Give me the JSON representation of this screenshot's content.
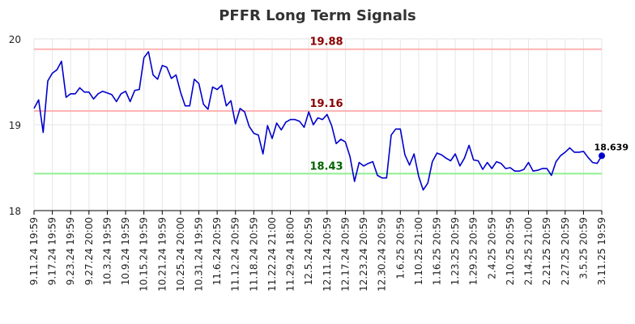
{
  "chart_data": {
    "type": "line",
    "title": "PFFR Long Term Signals",
    "xlabel": "",
    "ylabel": "",
    "ylim": [
      18,
      20
    ],
    "yticks": [
      18,
      19,
      20
    ],
    "x_tick_labels": [
      "9.11.24 19:59",
      "9.17.24 19:59",
      "9.23.24 19:59",
      "9.27.24 20:00",
      "10.3.24 19:59",
      "10.9.24 19:59",
      "10.15.24 19:59",
      "10.21.24 19:59",
      "10.25.24 20:00",
      "10.31.24 19:59",
      "11.6.24 20:59",
      "11.12.24 20:59",
      "11.18.24 20:59",
      "11.22.24 21:00",
      "11.29.24 18:00",
      "12.5.24 20:59",
      "12.11.24 20:59",
      "12.17.24 20:59",
      "12.23.24 20:59",
      "12.30.24 20:59",
      "1.6.25 20:59",
      "1.10.25 21:00",
      "1.16.25 20:59",
      "1.23.25 20:59",
      "1.29.25 20:59",
      "2.4.25 20:59",
      "2.10.25 20:59",
      "2.14.25 21:00",
      "2.21.25 20:59",
      "2.27.25 20:59",
      "3.5.25 20:59",
      "3.11.25 19:59"
    ],
    "horizontal_lines": [
      {
        "value": 19.88,
        "label": "19.88",
        "line_color": "#ffb3b3",
        "label_color": "#8b0000"
      },
      {
        "value": 19.16,
        "label": "19.16",
        "line_color": "#ffb3b3",
        "label_color": "#8b0000"
      },
      {
        "value": 18.43,
        "label": "18.43",
        "line_color": "#90ee90",
        "label_color": "#006400"
      }
    ],
    "series": [
      {
        "color": "#0000cc",
        "values": [
          19.19,
          19.29,
          18.91,
          19.51,
          19.6,
          19.64,
          19.74,
          19.32,
          19.36,
          19.36,
          19.43,
          19.38,
          19.38,
          19.3,
          19.36,
          19.39,
          19.37,
          19.35,
          19.27,
          19.36,
          19.39,
          19.27,
          19.4,
          19.41,
          19.78,
          19.85,
          19.58,
          19.53,
          19.69,
          19.67,
          19.54,
          19.58,
          19.38,
          19.22,
          19.22,
          19.53,
          19.48,
          19.24,
          19.18,
          19.44,
          19.41,
          19.46,
          19.22,
          19.28,
          19.01,
          19.19,
          19.15,
          18.98,
          18.9,
          18.88,
          18.66,
          18.99,
          18.84,
          19.02,
          18.94,
          19.03,
          19.06,
          19.06,
          19.04,
          18.97,
          19.15,
          19.0,
          19.08,
          19.06,
          19.12,
          18.99,
          18.78,
          18.83,
          18.8,
          18.63,
          18.34,
          18.56,
          18.52,
          18.55,
          18.57,
          18.41,
          18.38,
          18.38,
          18.88,
          18.95,
          18.95,
          18.65,
          18.53,
          18.66,
          18.4,
          18.24,
          18.32,
          18.57,
          18.67,
          18.65,
          18.61,
          18.58,
          18.66,
          18.52,
          18.61,
          18.76,
          18.59,
          18.58,
          18.48,
          18.56,
          18.49,
          18.57,
          18.55,
          18.49,
          18.5,
          18.46,
          18.46,
          18.48,
          18.56,
          18.46,
          18.47,
          18.49,
          18.49,
          18.41,
          18.57,
          18.64,
          18.68,
          18.73,
          18.68,
          18.68,
          18.69,
          18.62,
          18.56,
          18.55,
          18.639
        ]
      }
    ],
    "last_value_label": "18.639",
    "grid": true,
    "legend": "none"
  }
}
